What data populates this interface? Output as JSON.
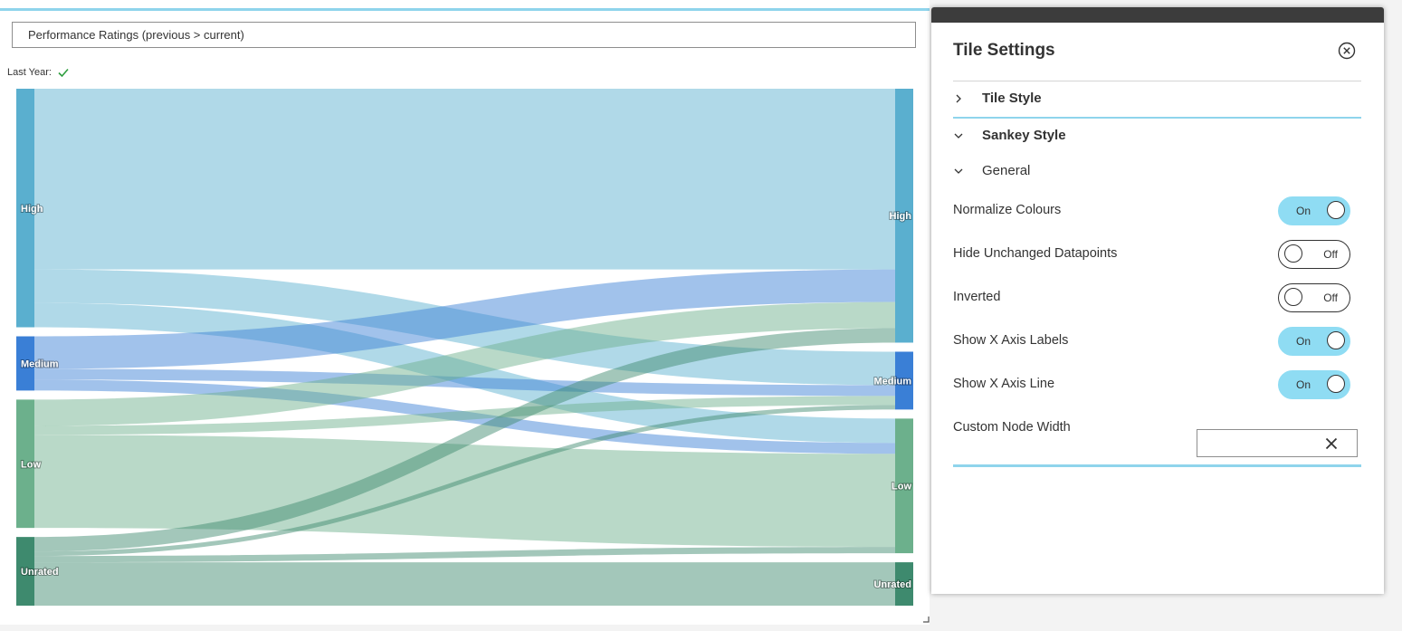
{
  "chart": {
    "title": "Performance Ratings (previous > current)",
    "last_year_label": "Last Year:",
    "last_year_icon": "check-icon"
  },
  "chart_data": {
    "type": "sankey",
    "title": "Performance Ratings (previous > current)",
    "nodes_left": [
      {
        "name": "High",
        "color": "#5aafcf"
      },
      {
        "name": "Medium",
        "color": "#3a7fd6"
      },
      {
        "name": "Low",
        "color": "#6cb08c"
      },
      {
        "name": "Unrated",
        "color": "#3e8a6e"
      }
    ],
    "nodes_right": [
      {
        "name": "High",
        "color": "#5aafcf"
      },
      {
        "name": "Medium",
        "color": "#3a7fd6"
      },
      {
        "name": "Low",
        "color": "#6cb08c"
      },
      {
        "name": "Unrated",
        "color": "#3e8a6e"
      }
    ],
    "links": [
      {
        "source": "High",
        "target": "High",
        "value": 200
      },
      {
        "source": "High",
        "target": "Medium",
        "value": 37
      },
      {
        "source": "High",
        "target": "Low",
        "value": 27
      },
      {
        "source": "Medium",
        "target": "High",
        "value": 36
      },
      {
        "source": "Medium",
        "target": "Medium",
        "value": 12
      },
      {
        "source": "Medium",
        "target": "Low",
        "value": 12
      },
      {
        "source": "Low",
        "target": "High",
        "value": 29
      },
      {
        "source": "Low",
        "target": "Medium",
        "value": 10
      },
      {
        "source": "Low",
        "target": "Low",
        "value": 103
      },
      {
        "source": "Unrated",
        "target": "High",
        "value": 16
      },
      {
        "source": "Unrated",
        "target": "Medium",
        "value": 5
      },
      {
        "source": "Unrated",
        "target": "Low",
        "value": 7
      },
      {
        "source": "Unrated",
        "target": "Unrated",
        "value": 48
      }
    ]
  },
  "panel": {
    "title": "Tile Settings",
    "close_icon": "close-circle-icon",
    "sections": {
      "tile_style": "Tile Style",
      "sankey_style": "Sankey Style",
      "general": "General"
    },
    "settings": [
      {
        "label": "Normalize Colours",
        "state": "On"
      },
      {
        "label": "Hide Unchanged Datapoints",
        "state": "Off"
      },
      {
        "label": "Inverted",
        "state": "Off"
      },
      {
        "label": "Show X Axis Labels",
        "state": "On"
      },
      {
        "label": "Show X Axis Line",
        "state": "On"
      }
    ],
    "custom_node_width": {
      "label": "Custom Node Width",
      "value": ""
    }
  }
}
